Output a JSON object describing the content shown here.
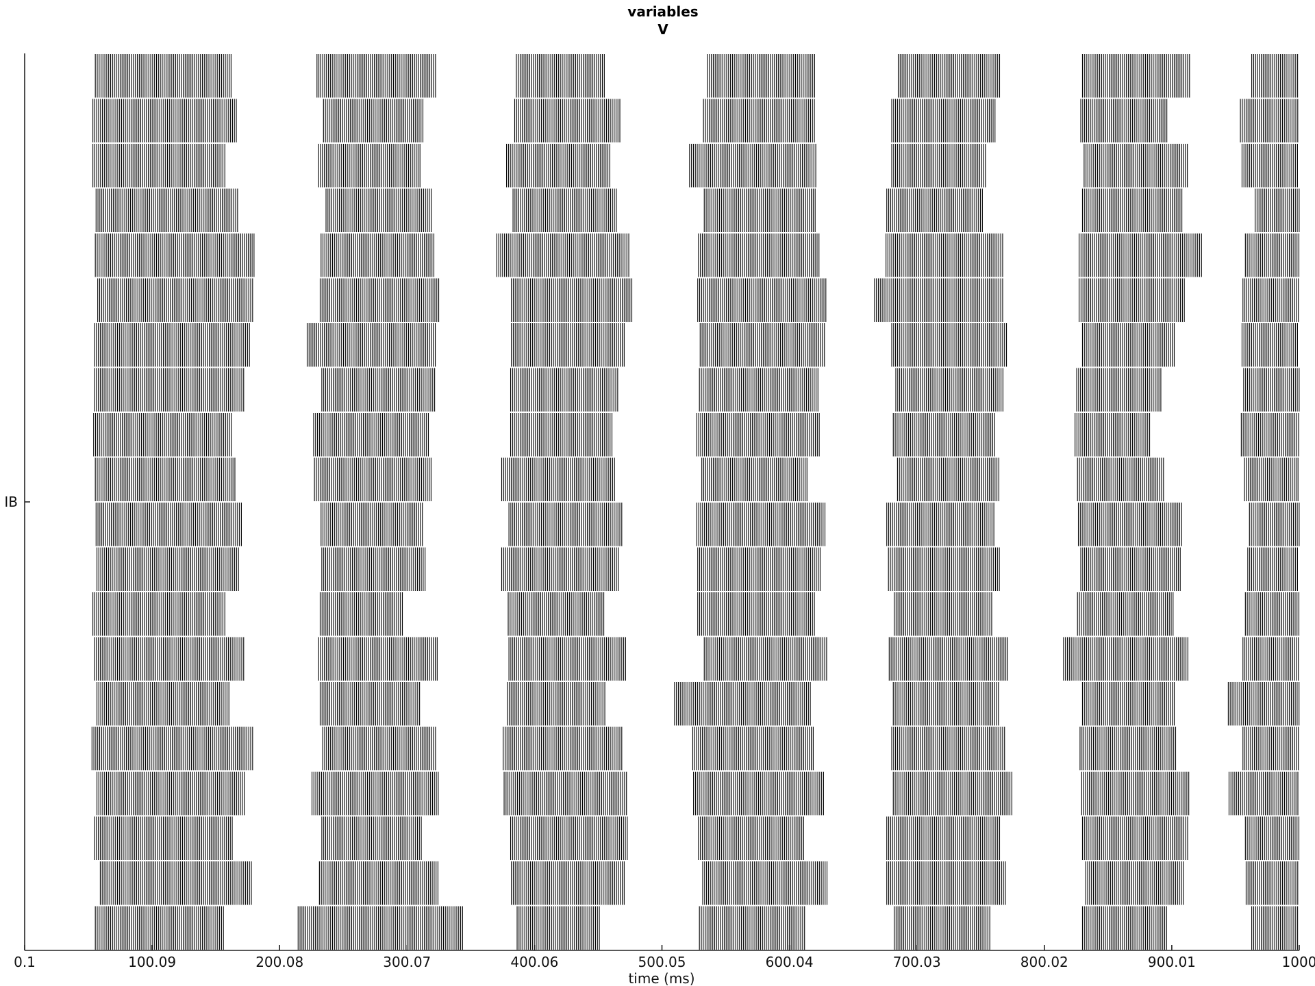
{
  "chart_data": {
    "type": "raster",
    "title": "variables",
    "subtitle": "V",
    "xlabel": "time (ms)",
    "ylabel": "",
    "xlim": [
      0.1,
      1000
    ],
    "x_ticks": [
      0.1,
      100.09,
      200.08,
      300.07,
      400.06,
      500.05,
      600.04,
      700.03,
      800.02,
      900.01,
      1000
    ],
    "x_tick_labels": [
      "0.1",
      "100.09",
      "200.08",
      "300.07",
      "400.06",
      "500.05",
      "600.04",
      "700.03",
      "800.02",
      "900.01",
      "1000"
    ],
    "y_tick_labels": [
      "IB"
    ],
    "grid": false,
    "spike_color": "#000000",
    "neuron_count": 20,
    "spike_interval_ms": 1.5,
    "bursts": [
      [
        [
          55.5,
          162.3
        ],
        [
          229.4,
          322.5
        ],
        [
          385.8,
          455.5
        ],
        [
          535.8,
          620.8
        ],
        [
          685.4,
          764.9
        ],
        [
          829.9,
          915.3
        ],
        [
          962.7,
          1000
        ]
      ],
      [
        [
          53.6,
          166.8
        ],
        [
          234.5,
          312.9
        ],
        [
          384.5,
          467.2
        ],
        [
          532.6,
          620.8
        ],
        [
          680.3,
          762.1
        ],
        [
          828.6,
          896.6
        ],
        [
          953.8,
          1000
        ]
      ],
      [
        [
          53.6,
          158.5
        ],
        [
          230.7,
          310.3
        ],
        [
          378.1,
          459.3
        ],
        [
          521.7,
          620.8
        ],
        [
          680.3,
          754.4
        ],
        [
          831.2,
          913.4
        ],
        [
          955.1,
          1000
        ]
      ],
      [
        [
          56.1,
          168.1
        ],
        [
          236.5,
          319.3
        ],
        [
          383.2,
          464.7
        ],
        [
          533.2,
          620.2
        ],
        [
          676.4,
          752.5
        ],
        [
          829.9,
          908.3
        ],
        [
          965.4,
          1000
        ]
      ],
      [
        [
          55.5,
          180.9
        ],
        [
          232.6,
          322.5
        ],
        [
          370.5,
          474.3
        ],
        [
          528.7,
          624.0
        ],
        [
          675.8,
          768.1
        ],
        [
          827.3,
          924.3
        ],
        [
          957.7,
          1000
        ]
      ],
      [
        [
          57.4,
          180.3
        ],
        [
          231.9,
          325.0
        ],
        [
          381.9,
          477.5
        ],
        [
          528.1,
          629.8
        ],
        [
          666.8,
          768.1
        ],
        [
          827.3,
          910.9
        ],
        [
          955.8,
          1000
        ]
      ],
      [
        [
          54.9,
          176.5
        ],
        [
          221.7,
          322.5
        ],
        [
          381.9,
          470.5
        ],
        [
          530.0,
          627.9
        ],
        [
          680.3,
          770.7
        ],
        [
          829.9,
          903.2
        ],
        [
          955.1,
          1000
        ]
      ],
      [
        [
          54.9,
          172.0
        ],
        [
          233.2,
          322.5
        ],
        [
          381.3,
          465.4
        ],
        [
          529.4,
          622.7
        ],
        [
          683.5,
          767.5
        ],
        [
          825.4,
          891.5
        ],
        [
          956.4,
          1000
        ]
      ],
      [
        [
          54.2,
          162.9
        ],
        [
          226.8,
          318.0
        ],
        [
          381.3,
          461.8
        ],
        [
          527.4,
          623.4
        ],
        [
          681.5,
          761.5
        ],
        [
          824.1,
          882.6
        ],
        [
          954.5,
          1000
        ]
      ],
      [
        [
          55.5,
          165.5
        ],
        [
          227.4,
          319.3
        ],
        [
          374.3,
          464.1
        ],
        [
          531.3,
          615.0
        ],
        [
          684.8,
          765.5
        ],
        [
          826.0,
          894.0
        ],
        [
          957.0,
          1000
        ]
      ],
      [
        [
          56.1,
          170.7
        ],
        [
          232.6,
          312.2
        ],
        [
          380.0,
          469.9
        ],
        [
          527.4,
          629.2
        ],
        [
          676.4,
          761.5
        ],
        [
          826.7,
          908.3
        ],
        [
          960.9,
          1000
        ]
      ],
      [
        [
          56.8,
          168.1
        ],
        [
          233.2,
          314.2
        ],
        [
          374.3,
          467.2
        ],
        [
          528.1,
          625.3
        ],
        [
          677.7,
          764.9
        ],
        [
          828.6,
          907.7
        ],
        [
          959.6,
          1000
        ]
      ],
      [
        [
          53.6,
          157.9
        ],
        [
          231.9,
          297.5
        ],
        [
          379.4,
          455.5
        ],
        [
          528.1,
          620.2
        ],
        [
          682.2,
          759.0
        ],
        [
          826.0,
          901.9
        ],
        [
          957.7,
          1000
        ]
      ],
      [
        [
          54.9,
          173.2
        ],
        [
          230.7,
          325.0
        ],
        [
          380.0,
          472.4
        ],
        [
          533.2,
          629.2
        ],
        [
          678.3,
          771.3
        ],
        [
          815.1,
          914.0
        ],
        [
          955.8,
          1000
        ]
      ],
      [
        [
          56.8,
          161.7
        ],
        [
          231.9,
          310.3
        ],
        [
          378.7,
          455.5
        ],
        [
          509.9,
          617.7
        ],
        [
          681.5,
          764.2
        ],
        [
          829.9,
          903.2
        ],
        [
          944.3,
          1000
        ]
      ],
      [
        [
          52.9,
          179.0
        ],
        [
          233.9,
          322.5
        ],
        [
          375.5,
          469.2
        ],
        [
          524.2,
          619.5
        ],
        [
          680.3,
          770.0
        ],
        [
          828.0,
          903.2
        ],
        [
          955.8,
          1000
        ]
      ],
      [
        [
          56.8,
          173.2
        ],
        [
          225.5,
          325.0
        ],
        [
          376.2,
          473.1
        ],
        [
          524.8,
          627.2
        ],
        [
          681.5,
          775.1
        ],
        [
          829.3,
          914.7
        ],
        [
          944.9,
          1000
        ]
      ],
      [
        [
          54.9,
          163.5
        ],
        [
          233.2,
          312.2
        ],
        [
          381.3,
          473.1
        ],
        [
          528.7,
          612.4
        ],
        [
          676.4,
          764.9
        ],
        [
          829.9,
          912.8
        ],
        [
          957.7,
          1000
        ]
      ],
      [
        [
          59.4,
          179.0
        ],
        [
          231.3,
          324.4
        ],
        [
          381.9,
          471.8
        ],
        [
          532.0,
          630.4
        ],
        [
          676.4,
          770.0
        ],
        [
          832.5,
          909.6
        ],
        [
          958.3,
          1000
        ]
      ],
      [
        [
          55.5,
          157.3
        ],
        [
          214.6,
          344.5
        ],
        [
          386.4,
          451.6
        ],
        [
          529.4,
          612.4
        ],
        [
          682.2,
          757.7
        ],
        [
          829.9,
          897.2
        ],
        [
          962.7,
          1000
        ]
      ]
    ]
  }
}
